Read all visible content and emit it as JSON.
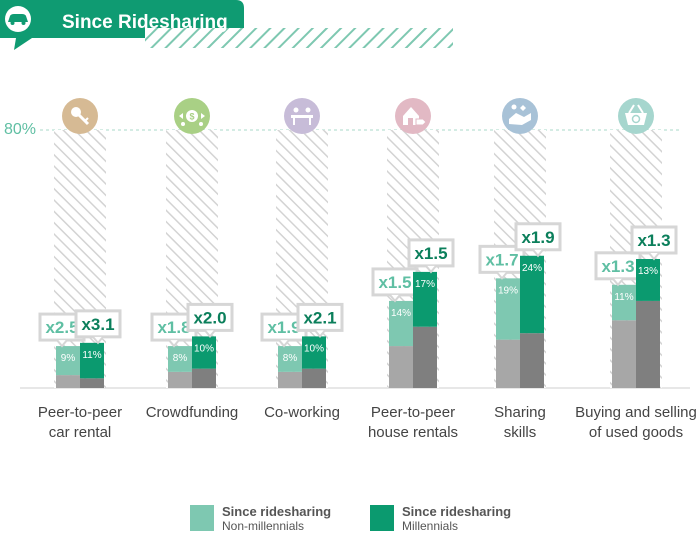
{
  "header": {
    "title": "Since Ridesharing"
  },
  "colors": {
    "header_green": "#0f9b72",
    "light_teal": "#7ec8b1",
    "dark_green": "#0b9a6f",
    "gray_light": "#a7a7a7",
    "gray_dark": "#7f7f7f",
    "hatch": "#cfcfcf",
    "axis_label": "#5fbfa3",
    "text": "#444444"
  },
  "chart_data": {
    "type": "bar",
    "ylim": [
      0,
      80
    ],
    "y_tick_label": "80%",
    "categories": [
      {
        "label_lines": [
          "Peer-to-peer",
          "car rental"
        ],
        "icon": "car-key-icon",
        "icon_color": "#d6ba94"
      },
      {
        "label_lines": [
          "Crowdfunding"
        ],
        "icon": "money-exchange-icon",
        "icon_color": "#a9d085"
      },
      {
        "label_lines": [
          "Co-working"
        ],
        "icon": "coworking-desk-icon",
        "icon_color": "#c7bcd8"
      },
      {
        "label_lines": [
          "Peer-to-peer",
          "house rentals"
        ],
        "icon": "house-tag-icon",
        "icon_color": "#e2b9c4"
      },
      {
        "label_lines": [
          "Sharing",
          "skills"
        ],
        "icon": "handshake-skills-icon",
        "icon_color": "#a8c2d7"
      },
      {
        "label_lines": [
          "Buying and selling",
          "of used goods"
        ],
        "icon": "basket-recycle-icon",
        "icon_color": "#a6d6ce"
      }
    ],
    "series": [
      {
        "name": "Since ridesharing Non-millennials",
        "values": [
          9,
          8,
          8,
          14,
          19,
          11
        ],
        "value_labels": [
          "9%",
          "8%",
          "8%",
          "14%",
          "19%",
          "11%"
        ],
        "multipliers": [
          "x2.5",
          "x1.8",
          "x1.9",
          "x1.5",
          "x1.7",
          "x1.3"
        ],
        "base_values": [
          4,
          5,
          5,
          13,
          15,
          21
        ]
      },
      {
        "name": "Since ridesharing Millennials",
        "values": [
          11,
          10,
          10,
          17,
          24,
          13
        ],
        "value_labels": [
          "11%",
          "10%",
          "10%",
          "17%",
          "24%",
          "13%"
        ],
        "multipliers": [
          "x3.1",
          "x2.0",
          "x2.1",
          "x1.5",
          "x1.9",
          "x1.3"
        ],
        "base_values": [
          3,
          6,
          6,
          19,
          17,
          27
        ]
      }
    ],
    "legend": [
      {
        "title": "Since ridesharing",
        "subtitle": "Non-millennials",
        "color": "#7ec8b1"
      },
      {
        "title": "Since ridesharing",
        "subtitle": "Millennials",
        "color": "#0b9a6f"
      }
    ],
    "legend_position": "bottom"
  }
}
